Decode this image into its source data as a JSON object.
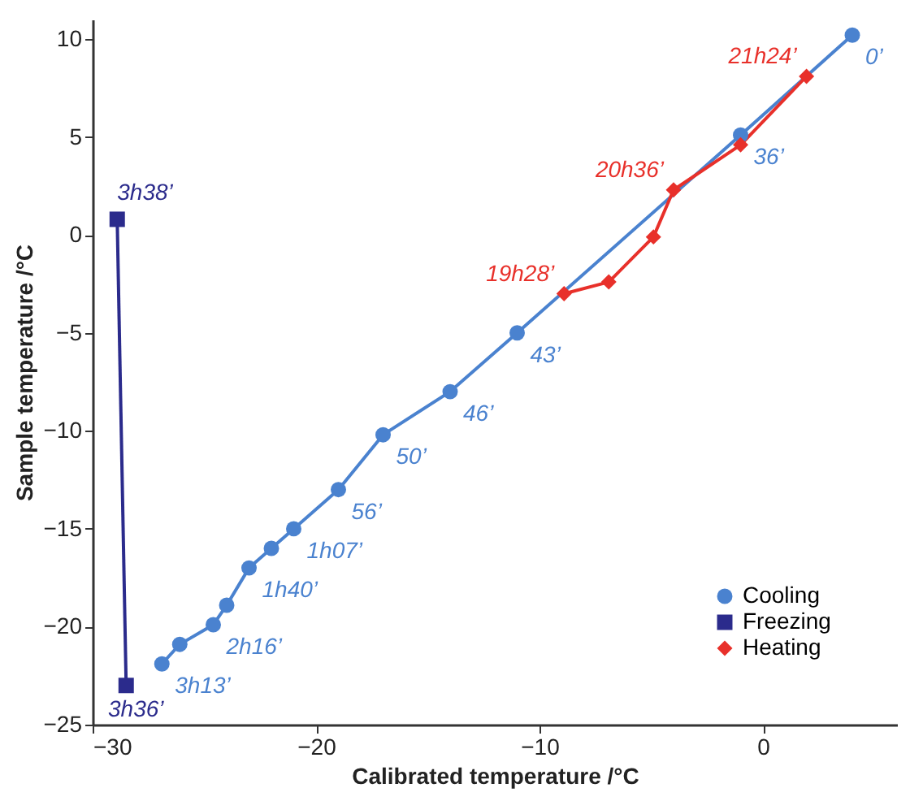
{
  "chart_data": {
    "type": "line",
    "xlabel": "Calibrated temperature /°C",
    "ylabel": "Sample temperature /°C",
    "xlim": [
      -30,
      6
    ],
    "xticks": [
      -30,
      -20,
      -10,
      0
    ],
    "ylim": [
      -25,
      11
    ],
    "yticks": [
      -25,
      -20,
      -15,
      -10,
      -5,
      0,
      5,
      10
    ],
    "grid": false,
    "legend": "bottom right",
    "series": [
      {
        "name": "Cooling",
        "color": "#4a82cf",
        "marker": "circle",
        "x": [
          4,
          -1,
          -11,
          -14,
          -17,
          -19,
          -21,
          -22,
          -23,
          -24,
          -24.6,
          -26.1,
          -26.9
        ],
        "values": [
          10.2,
          5.1,
          -5,
          -8,
          -10.2,
          -13,
          -15,
          -16,
          -17,
          -18.9,
          -19.9,
          -20.9,
          -21.9
        ]
      },
      {
        "name": "Freezing",
        "color": "#2b2b8c",
        "marker": "square",
        "x": [
          -28.5,
          -28.9
        ],
        "values": [
          -23,
          0.8
        ]
      },
      {
        "name": "Heating",
        "color": "#e8302a",
        "marker": "diamond",
        "x": [
          -8.9,
          -6.9,
          -4.9,
          -4,
          -1,
          1.95
        ],
        "values": [
          -3,
          -2.4,
          -0.1,
          2.3,
          4.6,
          8.1
        ]
      }
    ],
    "annotations": [
      {
        "text": "0’",
        "x": 4,
        "y": 10.2
      },
      {
        "text": "36’",
        "x": -1,
        "y": 5.1
      },
      {
        "text": "43’",
        "x": -11,
        "y": -5
      },
      {
        "text": "46’",
        "x": -14,
        "y": -8
      },
      {
        "text": "50’",
        "x": -17,
        "y": -10.2
      },
      {
        "text": "56’",
        "x": -19,
        "y": -13
      },
      {
        "text": "1h07’",
        "x": -21,
        "y": -15
      },
      {
        "text": "1h40’",
        "x": -23,
        "y": -17
      },
      {
        "text": "2h16’",
        "x": -24.6,
        "y": -19.9
      },
      {
        "text": "3h13’",
        "x": -26.9,
        "y": -21.9
      },
      {
        "text": "3h36’",
        "x": -28.5,
        "y": -23
      },
      {
        "text": "3h38’",
        "x": -28.9,
        "y": 0.8
      },
      {
        "text": "19h28’",
        "x": -8.9,
        "y": -3
      },
      {
        "text": "20h36’",
        "x": -4,
        "y": 2.3
      },
      {
        "text": "21h24’",
        "x": 1.95,
        "y": 8.1
      }
    ]
  }
}
